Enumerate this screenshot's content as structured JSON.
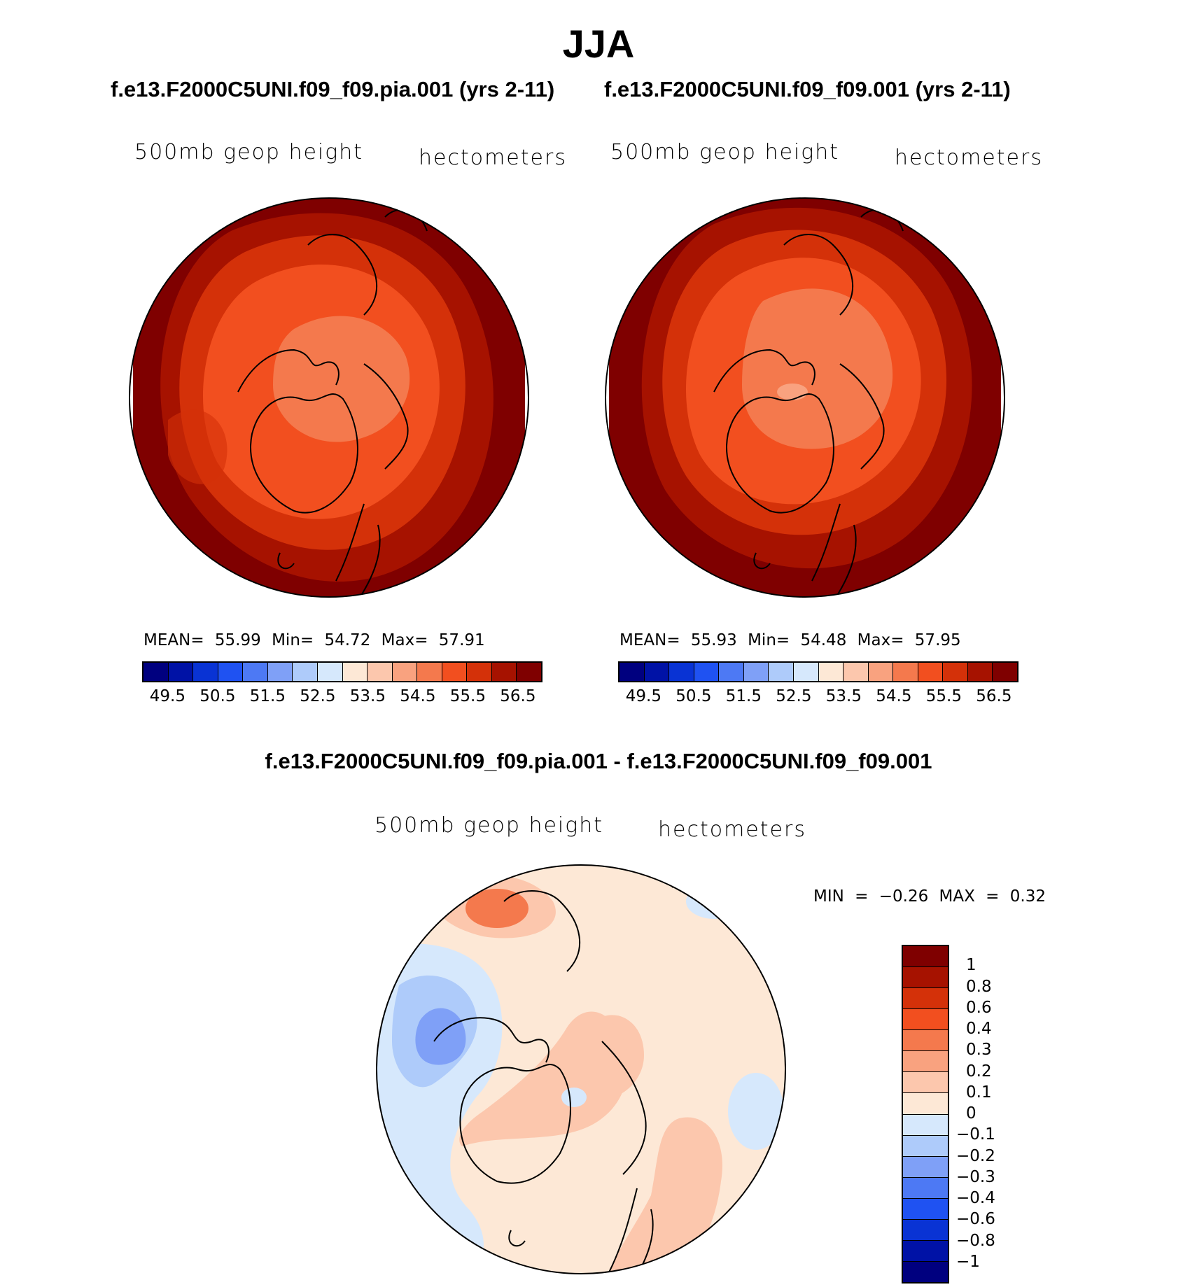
{
  "title": "JJA",
  "panels": [
    {
      "case_title": "f.e13.F2000C5UNI.f09_f09.pia.001 (yrs 2-11)",
      "variable": "500mb geop height",
      "units": "hectometers",
      "stats": {
        "mean_label": "MEAN=",
        "mean": "55.99",
        "min_label": "Min=",
        "min": "54.72",
        "max_label": "Max=",
        "max": "57.91"
      },
      "tick_labels": [
        "49.5",
        "50.5",
        "51.5",
        "52.5",
        "53.5",
        "54.5",
        "55.5",
        "56.5"
      ]
    },
    {
      "case_title": "f.e13.F2000C5UNI.f09_f09.001 (yrs 2-11)",
      "variable": "500mb geop height",
      "units": "hectometers",
      "stats": {
        "mean_label": "MEAN=",
        "mean": "55.93",
        "min_label": "Min=",
        "min": "54.48",
        "max_label": "Max=",
        "max": "57.95"
      },
      "tick_labels": [
        "49.5",
        "50.5",
        "51.5",
        "52.5",
        "53.5",
        "54.5",
        "55.5",
        "56.5"
      ]
    }
  ],
  "diff_panel": {
    "case_title": "f.e13.F2000C5UNI.f09_f09.pia.001 - f.e13.F2000C5UNI.f09_f09.001",
    "variable": "500mb geop height",
    "units": "hectometers",
    "min_label": "MIN =",
    "min": "−0.26",
    "max_label": "MAX =",
    "max": "0.32",
    "level_labels": [
      "1",
      "0.8",
      "0.6",
      "0.4",
      "0.3",
      "0.2",
      "0.1",
      "0",
      "−0.1",
      "−0.2",
      "−0.3",
      "−0.4",
      "−0.6",
      "−0.8",
      "−1"
    ]
  },
  "colors": {
    "abs_colorbar": [
      "#00007f",
      "#0012a6",
      "#0933d4",
      "#1f52f2",
      "#4d79f4",
      "#7fa0f7",
      "#aecbfa",
      "#d6e8fc",
      "#fde8d6",
      "#fcc7ad",
      "#f9a27f",
      "#f4794d",
      "#f24f1f",
      "#d43109",
      "#a61200",
      "#7f0000"
    ],
    "diff_colorbar": [
      "#7f0000",
      "#a61200",
      "#d43109",
      "#f24f1f",
      "#f4794d",
      "#f9a27f",
      "#fcc7ad",
      "#fde8d6",
      "#d6e8fc",
      "#aecbfa",
      "#7fa0f7",
      "#4d79f4",
      "#1f52f2",
      "#0933d4",
      "#0012a6",
      "#00007f"
    ]
  }
}
